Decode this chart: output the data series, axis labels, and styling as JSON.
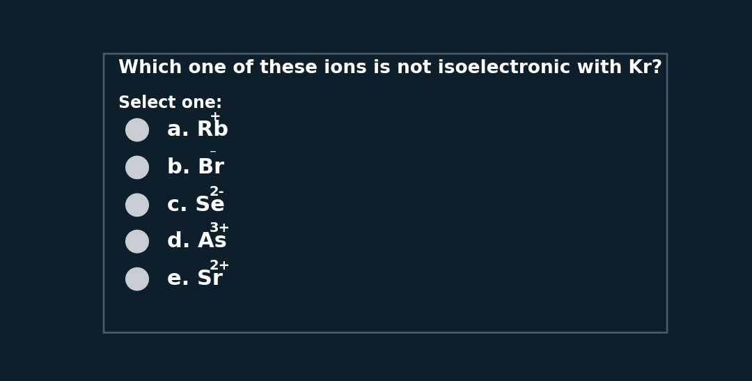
{
  "title": "Which one of these ions is not isoelectronic with Kr?",
  "select_one_label": "Select one:",
  "options": [
    {
      "letter": "a",
      "element": "Rb",
      "superscript": "+"
    },
    {
      "letter": "b",
      "element": "Br",
      "superscript": "⁻"
    },
    {
      "letter": "c",
      "element": "Se",
      "superscript": "2-"
    },
    {
      "letter": "d",
      "element": "As",
      "superscript": "3+"
    },
    {
      "letter": "e",
      "element": "Sr",
      "superscript": "2+"
    }
  ],
  "background_color": "#0d1f2b",
  "border_color": "#4a5a6a",
  "text_color": "#ffffff",
  "circle_color": "#c8cdd4",
  "title_fontsize": 19,
  "select_fontsize": 17,
  "option_fontsize": 22,
  "superscript_fontsize": 14
}
